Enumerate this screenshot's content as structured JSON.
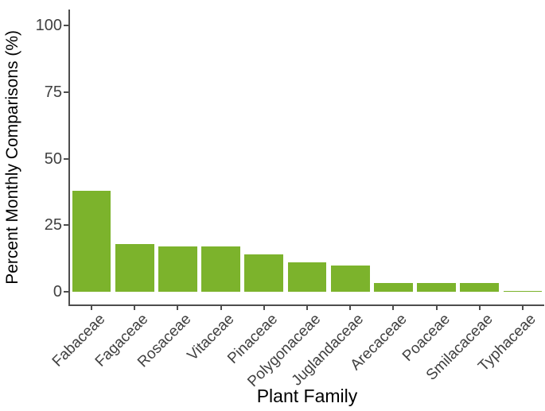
{
  "chart_data": {
    "type": "bar",
    "title": "",
    "xlabel": "Plant Family",
    "ylabel": "Percent Monthly Comparisons (%)",
    "categories": [
      "Fabaceae",
      "Fagaceae",
      "Rosaceae",
      "Vitaceae",
      "Pinaceae",
      "Polygonaceae",
      "Juglandaceae",
      "Arecaceae",
      "Poaceae",
      "Smilacaceae",
      "Typhaceae"
    ],
    "values": [
      38,
      18,
      17,
      17,
      14,
      11,
      10,
      3.3,
      3.3,
      3.5,
      0.5
    ],
    "ylim": [
      0,
      100
    ],
    "yticks": [
      0,
      25,
      50,
      75,
      100
    ],
    "ytick_labels": [
      "0",
      "25",
      "50",
      "75",
      "100"
    ],
    "x_tick_rotation": 45,
    "grid": false,
    "legend": false,
    "bar_color": "#7CB32C",
    "axis_color": "#4D4D4D",
    "tick_label_color": "#404040",
    "title_color": "#000000",
    "background_color": "#FFFFFF"
  }
}
